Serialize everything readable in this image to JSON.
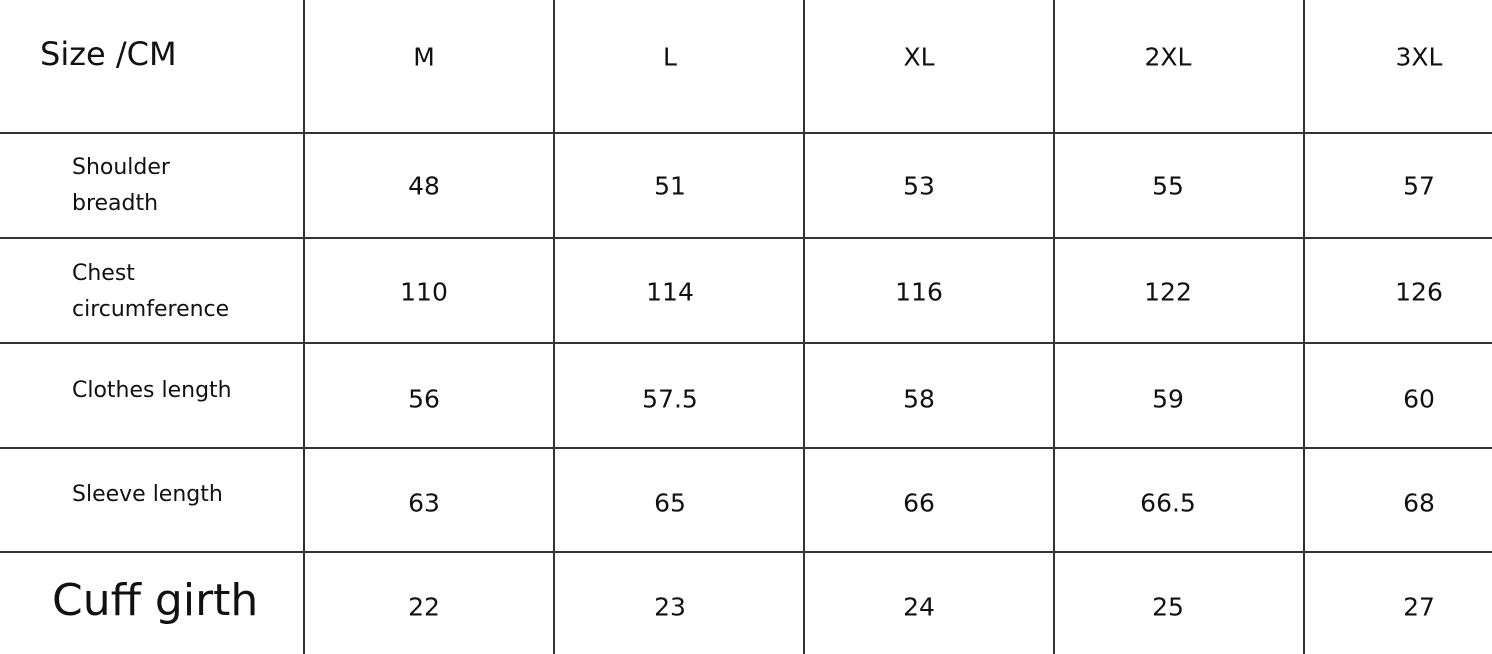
{
  "table": {
    "corner_label": "Size /CM",
    "sizes": [
      "M",
      "L",
      "XL",
      "2XL",
      "3XL"
    ],
    "rows": [
      {
        "label_lines": [
          "Shoulder",
          "breadth"
        ],
        "values": [
          "48",
          "51",
          "53",
          "55",
          "57"
        ]
      },
      {
        "label_lines": [
          "Chest",
          "circumference"
        ],
        "values": [
          "110",
          "114",
          "116",
          "122",
          "126"
        ]
      },
      {
        "label_lines": [
          "Clothes length"
        ],
        "values": [
          "56",
          "57.5",
          "58",
          "59",
          "60"
        ]
      },
      {
        "label_lines": [
          "Sleeve length"
        ],
        "values": [
          "63",
          "65",
          "66",
          "66.5",
          "68"
        ]
      },
      {
        "label_lines": [
          "Cuff girth"
        ],
        "values": [
          "22",
          "23",
          "24",
          "25",
          "27"
        ]
      }
    ]
  }
}
